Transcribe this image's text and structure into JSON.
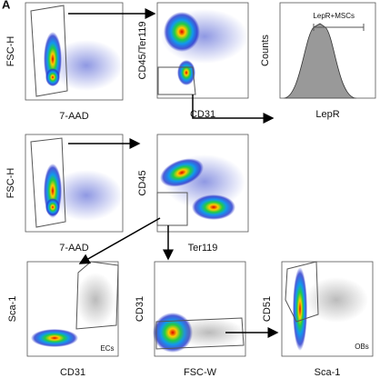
{
  "label": "A",
  "panels": [
    {
      "x_label": "7-AAD",
      "y_label": "FSC-H"
    },
    {
      "x_label": "CD31",
      "y_label": "CD45/Ter119"
    },
    {
      "x_label": "LepR",
      "y_label": "Counts",
      "gate_label": "LepR+MSCs"
    },
    {
      "x_label": "7-AAD",
      "y_label": "FSC-H"
    },
    {
      "x_label": "Ter119",
      "y_label": "CD45"
    },
    {
      "x_label": "CD31",
      "y_label": "Sca-1",
      "gate_label": "ECs"
    },
    {
      "x_label": "FSC-W",
      "y_label": "CD31"
    },
    {
      "x_label": "Sca-1",
      "y_label": "CD51",
      "gate_label": "OBs"
    }
  ]
}
